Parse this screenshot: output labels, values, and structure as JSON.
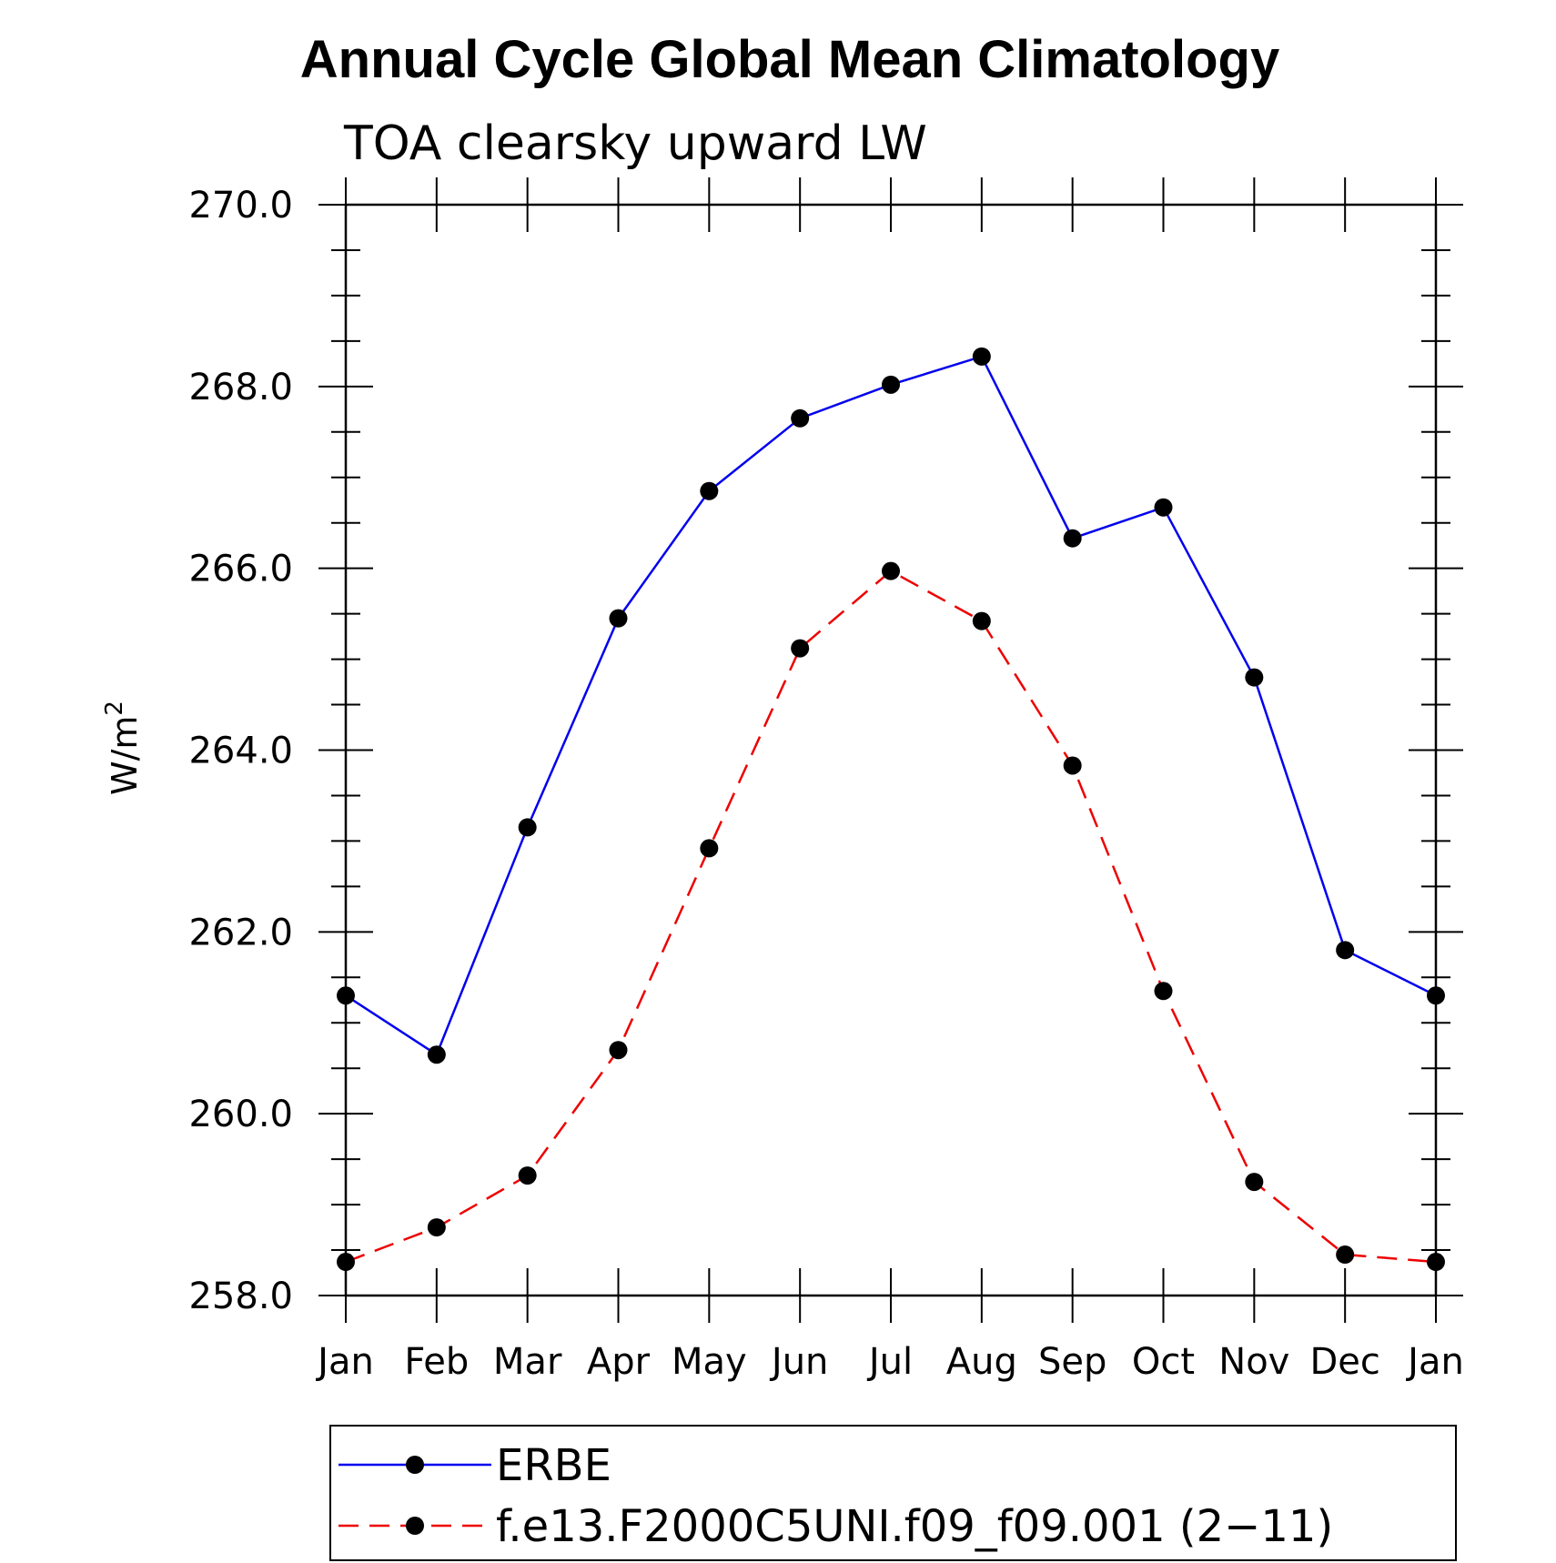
{
  "chart_data": {
    "type": "line",
    "title": "Annual Cycle Global Mean Climatology",
    "subtitle": "TOA clearsky upward LW",
    "xlabel": "",
    "ylabel": "W/m",
    "ylabel_superscript": "2",
    "categories": [
      "Jan",
      "Feb",
      "Mar",
      "Apr",
      "May",
      "Jun",
      "Jul",
      "Aug",
      "Sep",
      "Oct",
      "Nov",
      "Dec",
      "Jan"
    ],
    "ylim": [
      258.0,
      270.0
    ],
    "y_ticks": [
      "258.0",
      "260.0",
      "262.0",
      "264.0",
      "266.0",
      "268.0",
      "270.0"
    ],
    "y_tick_values": [
      258,
      260,
      262,
      264,
      266,
      268,
      270
    ],
    "grid": false,
    "legend_position": "bottom",
    "series": [
      {
        "name": "ERBE",
        "color": "#0000ee",
        "line_style": "solid",
        "marker": "filled-circle",
        "values": [
          261.3,
          260.65,
          263.15,
          265.45,
          266.85,
          267.65,
          268.02,
          268.33,
          266.33,
          266.67,
          264.8,
          261.8,
          261.3
        ]
      },
      {
        "name": "f.e13.F2000C5UNI.f09_f09.001 (2−11)",
        "color": "#ee0000",
        "line_style": "dashed",
        "marker": "filled-circle",
        "values": [
          258.37,
          258.75,
          259.32,
          260.7,
          262.92,
          265.12,
          265.97,
          265.42,
          263.83,
          261.35,
          259.25,
          258.45,
          258.37
        ]
      }
    ]
  }
}
